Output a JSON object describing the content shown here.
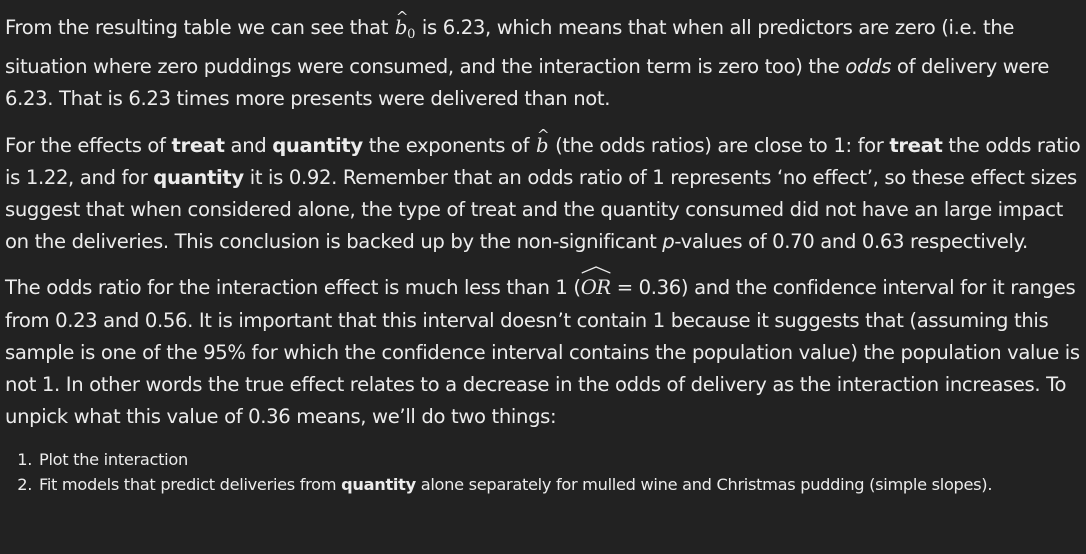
{
  "p1": {
    "text_a": "From the resulting table we can see that ",
    "symbol": "b",
    "symbol_sub": "0",
    "text_b": " is 6.23, which means that when all predictors are zero (i.e. the situation where zero puddings were consumed, and the interaction term is zero too) the ",
    "emph": "odds",
    "text_c": " of delivery were 6.23. That is 6.23 times more presents were delivered than not."
  },
  "p2": {
    "text_a": "For the effects of ",
    "treat_1": "treat",
    "text_b": " and ",
    "quantity_1": "quantity",
    "text_c": " the exponents of ",
    "symbol": "b",
    "text_d": " (the odds ratios) are close to 1: for ",
    "treat_2": "treat",
    "text_e": " the odds ratio is 1.22, and for ",
    "quantity_2": "quantity",
    "text_f": " it is 0.92. Remember that an odds ratio of 1 represents ‘no effect’, so these effect sizes suggest that when considered alone, the type of treat and the quantity consumed did not have an large impact on the deliveries. This conclusion is backed up by the non-significant ",
    "p_symbol": "p",
    "text_g": "-values of 0.70 and 0.63 respectively."
  },
  "p3": {
    "text_a": "The odds ratio for the interaction effect is much less than 1 (",
    "or_symbol": "OR",
    "text_b": " = 0.36) and the confidence interval for it ranges from 0.23 and 0.56. It is important that this interval doesn’t contain 1 because it suggests that (assuming this sample is one of the 95% for which the confidence interval contains the population value) the population value is not 1. In other words the true effect relates to a decrease in the odds of delivery as the interaction increases. To unpick what this value of 0.36 means, we’ll do two things:"
  },
  "list": {
    "item1": "Plot the interaction",
    "item2_a": "Fit models that predict deliveries from ",
    "item2_bold": "quantity",
    "item2_b": " alone separately for mulled wine and Christmas pudding (simple slopes)."
  }
}
